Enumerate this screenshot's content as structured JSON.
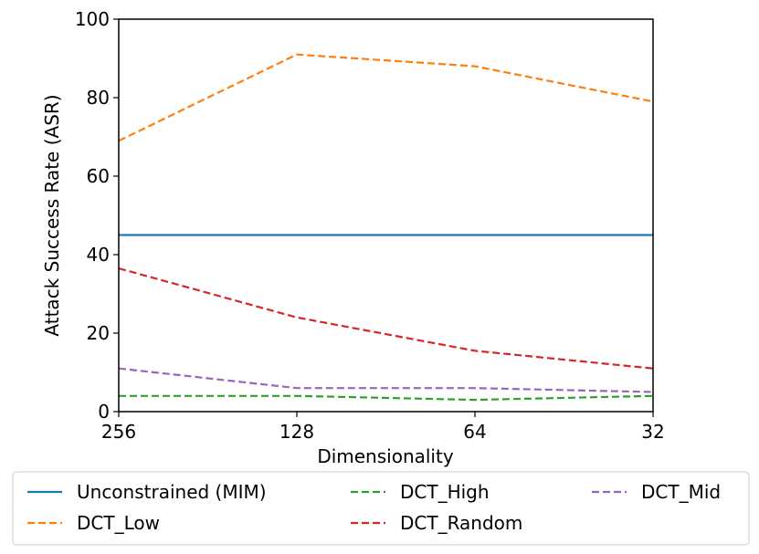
{
  "chart_data": {
    "type": "line",
    "x_tick_labels": [
      "256",
      "128",
      "64",
      "32"
    ],
    "y_ticks": [
      0,
      20,
      40,
      60,
      80,
      100
    ],
    "xlabel": "Dimensionality",
    "ylabel": "Attack Success Rate (ASR)",
    "ylim": [
      0,
      100
    ],
    "grid": false,
    "legend_position": "bottom, outside plot, 3 columns",
    "series": [
      {
        "name": "Unconstrained (MIM)",
        "color": "#1f77b4",
        "dash": "solid",
        "values": [
          45,
          45,
          45,
          45
        ]
      },
      {
        "name": "DCT_Low",
        "color": "#ff7f0e",
        "dash": "dashed",
        "values": [
          69,
          91,
          88,
          79
        ]
      },
      {
        "name": "DCT_High",
        "color": "#2ca02c",
        "dash": "dashed",
        "values": [
          4,
          4,
          3,
          4
        ]
      },
      {
        "name": "DCT_Random",
        "color": "#d62728",
        "dash": "dashed",
        "values": [
          36.5,
          24,
          15.5,
          11
        ]
      },
      {
        "name": "DCT_Mid",
        "color": "#9467bd",
        "dash": "dashed",
        "values": [
          11,
          6,
          6,
          5
        ]
      }
    ]
  }
}
